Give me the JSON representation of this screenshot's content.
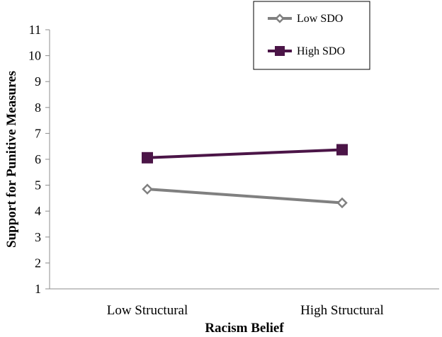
{
  "chart_data": {
    "type": "line",
    "categories": [
      "Low Structural",
      "High Structural"
    ],
    "series": [
      {
        "name": "Low SDO",
        "values": [
          4.85,
          4.32
        ],
        "color": "#808080",
        "marker": "diamond-open"
      },
      {
        "name": "High SDO",
        "values": [
          6.06,
          6.37
        ],
        "color": "#4b1547",
        "marker": "square-filled"
      }
    ],
    "xlabel": "Racism Belief",
    "ylabel": "Support for Punitive Measures",
    "ylim": [
      1,
      11
    ],
    "yticks": [
      "1",
      "2",
      "3",
      "4",
      "5",
      "6",
      "7",
      "8",
      "9",
      "10",
      "11"
    ],
    "grid": false,
    "legend_position": "top-right"
  }
}
